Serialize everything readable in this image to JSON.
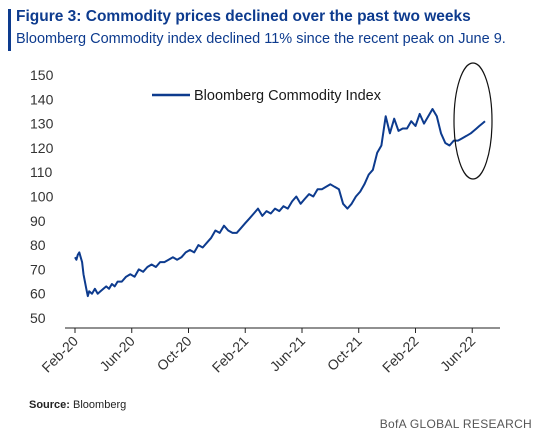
{
  "header": {
    "title": "Figure 3: Commodity prices declined over the past two weeks",
    "subtitle": "Bloomberg Commodity index declined 11% since the recent peak on June 9."
  },
  "footer": {
    "source_label": "Source:",
    "source_value": "Bloomberg",
    "brand": "BofA GLOBAL RESEARCH"
  },
  "colors": {
    "series": "#0d3b8e",
    "text": "#333333"
  },
  "chart_data": {
    "type": "line",
    "title": "",
    "xlabel": "",
    "ylabel": "",
    "ylim": [
      50,
      150
    ],
    "yticks": [
      50,
      60,
      70,
      80,
      90,
      100,
      110,
      120,
      130,
      140,
      150
    ],
    "xticks": [
      "Feb-20",
      "Jun-20",
      "Oct-20",
      "Feb-21",
      "Jun-21",
      "Oct-21",
      "Feb-22",
      "Jun-22"
    ],
    "legend": "top-center",
    "grid": false,
    "annotations": [
      "circle around June 2022 decline"
    ],
    "series": [
      {
        "name": "Bloomberg Commodity Index",
        "color": "#0d3b8e",
        "x": [
          0,
          0.1,
          0.2,
          0.3,
          0.4,
          0.5,
          0.6,
          0.7,
          0.8,
          0.9,
          1.0,
          1.2,
          1.4,
          1.6,
          1.8,
          2.0,
          2.2,
          2.4,
          2.6,
          2.8,
          3.0,
          3.3,
          3.6,
          3.9,
          4.2,
          4.5,
          4.8,
          5.1,
          5.4,
          5.7,
          6.0,
          6.3,
          6.6,
          6.9,
          7.2,
          7.5,
          7.8,
          8.1,
          8.4,
          8.7,
          9.0,
          9.3,
          9.6,
          9.9,
          10.2,
          10.5,
          10.8,
          11.1,
          11.4,
          11.7,
          12.0,
          12.3,
          12.6,
          12.9,
          13.2,
          13.5,
          13.8,
          14.1,
          14.4,
          14.7,
          15.0,
          15.3,
          15.6,
          15.9,
          16.2,
          16.5,
          16.8,
          17.1,
          17.4,
          17.7,
          18.0,
          18.3,
          18.6,
          18.9,
          19.2,
          19.5,
          19.8,
          20.1,
          20.4,
          20.7,
          21.0,
          21.3,
          21.6,
          21.9,
          22.2,
          22.5,
          22.8,
          23.1,
          23.4,
          23.7,
          24.0,
          24.3,
          24.6,
          24.9,
          25.2,
          25.5,
          25.8,
          26.1,
          26.4,
          26.7,
          27.0,
          27.3,
          27.6,
          27.9,
          28.1,
          28.3,
          28.5,
          28.7,
          28.9
        ],
        "values": [
          75,
          74,
          76,
          77,
          75,
          73,
          68,
          65,
          62,
          59,
          61,
          60,
          62,
          60,
          61,
          62,
          63,
          62,
          64,
          63,
          65,
          65,
          67,
          68,
          67,
          70,
          69,
          71,
          72,
          71,
          73,
          73,
          74,
          75,
          74,
          75,
          77,
          78,
          77,
          80,
          79,
          81,
          83,
          86,
          85,
          88,
          86,
          85,
          85,
          87,
          89,
          91,
          93,
          95,
          92,
          94,
          93,
          95,
          94,
          96,
          95,
          98,
          100,
          97,
          99,
          101,
          100,
          103,
          103,
          104,
          105,
          104,
          103,
          97,
          95,
          97,
          100,
          102,
          105,
          109,
          111,
          118,
          121,
          133,
          126,
          132,
          127,
          128,
          128,
          131,
          129,
          134,
          130,
          133,
          136,
          133,
          126,
          122,
          121,
          123,
          123,
          124,
          125,
          126,
          127,
          128,
          129,
          130,
          131
        ],
        "x_note": "months since Feb-20"
      }
    ]
  }
}
